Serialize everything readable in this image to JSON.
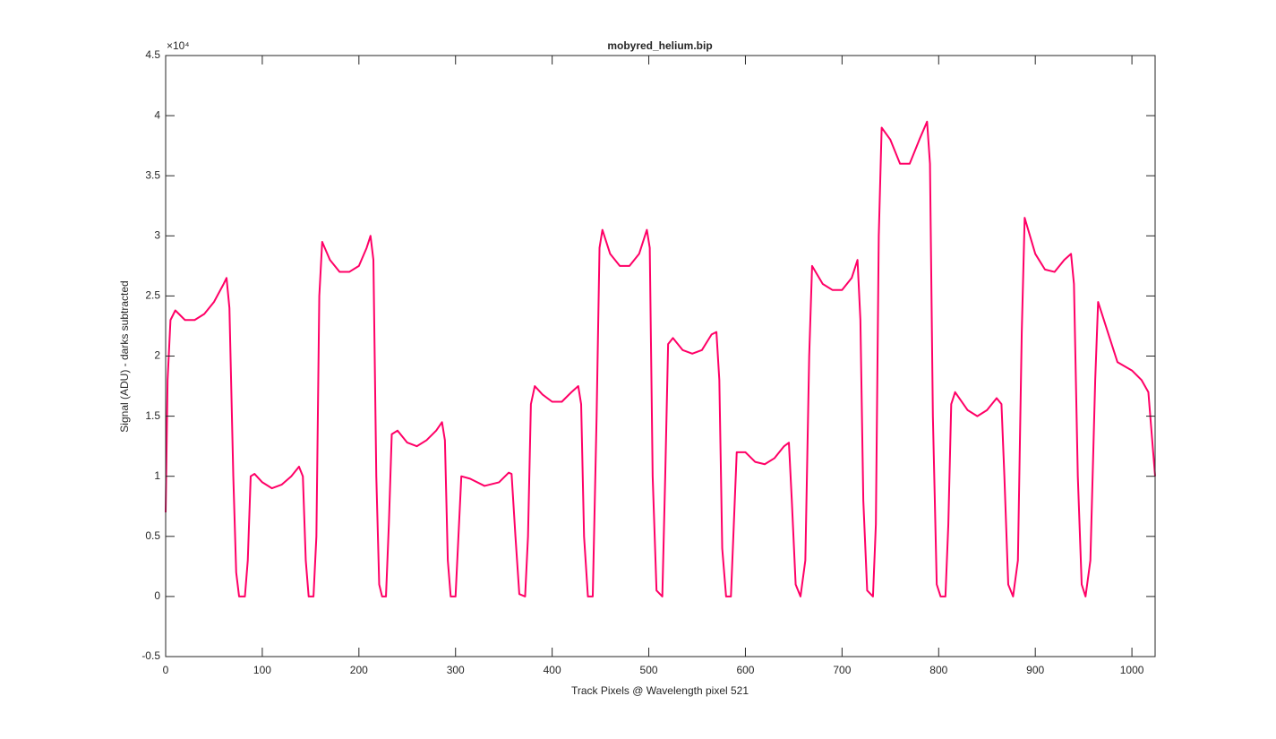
{
  "chart_data": {
    "type": "line",
    "title": "mobyred_helium.bip",
    "x_label": "Track Pixels @ Wavelength pixel 521",
    "y_label": "Signal (ADU) - darks subtracted",
    "y_multiplier": "×10⁴",
    "xlim": [
      0,
      1024
    ],
    "ylim": [
      -0.5,
      4.5
    ],
    "xticks": [
      0,
      100,
      200,
      300,
      400,
      500,
      600,
      700,
      800,
      900,
      1000
    ],
    "yticks": [
      -0.5,
      0,
      0.5,
      1,
      1.5,
      2,
      2.5,
      3,
      3.5,
      4,
      4.5
    ],
    "series": [
      {
        "color": "#ff0066",
        "x": [
          0,
          2,
          5,
          10,
          20,
          30,
          40,
          50,
          60,
          63,
          66,
          70,
          73,
          76,
          82,
          85,
          88,
          92,
          100,
          110,
          120,
          130,
          138,
          142,
          145,
          148,
          153,
          156,
          159,
          162,
          170,
          180,
          190,
          200,
          208,
          212,
          215,
          218,
          221,
          224,
          228,
          231,
          234,
          240,
          250,
          260,
          270,
          280,
          286,
          289,
          292,
          295,
          300,
          303,
          306,
          315,
          330,
          345,
          355,
          358,
          362,
          366,
          372,
          375,
          378,
          382,
          390,
          400,
          410,
          420,
          427,
          430,
          433,
          437,
          442,
          446,
          449,
          452,
          460,
          470,
          480,
          490,
          498,
          501,
          504,
          508,
          514,
          517,
          520,
          525,
          535,
          545,
          555,
          565,
          570,
          573,
          576,
          580,
          585,
          588,
          591,
          600,
          610,
          620,
          630,
          640,
          645,
          648,
          652,
          657,
          662,
          666,
          669,
          680,
          690,
          700,
          710,
          716,
          719,
          722,
          726,
          732,
          735,
          738,
          741,
          750,
          760,
          770,
          780,
          788,
          791,
          794,
          798,
          802,
          807,
          810,
          813,
          817,
          830,
          840,
          850,
          860,
          865,
          868,
          872,
          877,
          882,
          886,
          889,
          900,
          910,
          920,
          930,
          937,
          940,
          944,
          948,
          952,
          957,
          962,
          965,
          975,
          985,
          1000,
          1010,
          1017,
          1020,
          1024
        ],
        "values": [
          0.7,
          1.8,
          2.3,
          2.38,
          2.3,
          2.3,
          2.35,
          2.45,
          2.6,
          2.65,
          2.4,
          1.0,
          0.2,
          0.0,
          0.0,
          0.3,
          1.0,
          1.02,
          0.95,
          0.9,
          0.93,
          1.0,
          1.08,
          1.0,
          0.3,
          0.0,
          0.0,
          0.5,
          2.5,
          2.95,
          2.8,
          2.7,
          2.7,
          2.75,
          2.9,
          3.0,
          2.8,
          1.0,
          0.1,
          0.0,
          0.0,
          0.6,
          1.35,
          1.38,
          1.28,
          1.25,
          1.3,
          1.38,
          1.45,
          1.3,
          0.3,
          0.0,
          0.0,
          0.5,
          1.0,
          0.98,
          0.92,
          0.95,
          1.03,
          1.02,
          0.5,
          0.02,
          0.0,
          0.5,
          1.6,
          1.75,
          1.68,
          1.62,
          1.62,
          1.7,
          1.75,
          1.6,
          0.5,
          0.0,
          0.0,
          1.5,
          2.9,
          3.05,
          2.85,
          2.75,
          2.75,
          2.85,
          3.05,
          2.9,
          1.0,
          0.05,
          0.0,
          1.0,
          2.1,
          2.15,
          2.05,
          2.02,
          2.05,
          2.18,
          2.2,
          1.8,
          0.4,
          0.0,
          0.0,
          0.6,
          1.2,
          1.2,
          1.12,
          1.1,
          1.15,
          1.25,
          1.28,
          0.8,
          0.1,
          0.0,
          0.3,
          2.0,
          2.75,
          2.6,
          2.55,
          2.55,
          2.65,
          2.8,
          2.3,
          0.8,
          0.05,
          0.0,
          0.6,
          3.0,
          3.9,
          3.8,
          3.6,
          3.6,
          3.8,
          3.95,
          3.6,
          1.5,
          0.1,
          0.0,
          0.0,
          0.6,
          1.6,
          1.7,
          1.55,
          1.5,
          1.55,
          1.65,
          1.6,
          1.0,
          0.1,
          0.0,
          0.3,
          2.2,
          3.15,
          2.85,
          2.72,
          2.7,
          2.8,
          2.85,
          2.6,
          1.0,
          0.1,
          0.0,
          0.3,
          1.8,
          2.45,
          2.2,
          1.95,
          1.88,
          1.8,
          1.7,
          1.4,
          1.0
        ]
      }
    ]
  }
}
